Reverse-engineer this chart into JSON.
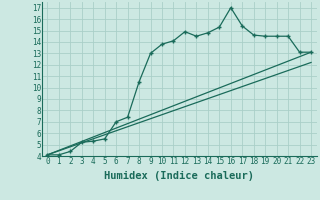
{
  "background_color": "#cce8e2",
  "grid_color": "#aacfc8",
  "line_color": "#1a6b5a",
  "xlabel": "Humidex (Indice chaleur)",
  "xlabel_fontsize": 7.5,
  "tick_fontsize": 5.5,
  "xlim": [
    -0.5,
    23.5
  ],
  "ylim": [
    4,
    17.5
  ],
  "x_ticks": [
    0,
    1,
    2,
    3,
    4,
    5,
    6,
    7,
    8,
    9,
    10,
    11,
    12,
    13,
    14,
    15,
    16,
    17,
    18,
    19,
    20,
    21,
    22,
    23
  ],
  "y_ticks": [
    4,
    5,
    6,
    7,
    8,
    9,
    10,
    11,
    12,
    13,
    14,
    15,
    16,
    17
  ],
  "curve1_x": [
    0,
    1,
    2,
    3,
    4,
    5,
    6,
    7,
    8,
    9,
    10,
    11,
    12,
    13,
    14,
    15,
    16,
    17,
    18,
    19,
    20,
    21,
    22,
    23
  ],
  "curve1_y": [
    4.1,
    4.1,
    4.4,
    5.2,
    5.3,
    5.5,
    7.0,
    7.4,
    10.5,
    13.0,
    13.8,
    14.1,
    14.9,
    14.5,
    14.8,
    15.3,
    17.0,
    15.4,
    14.6,
    14.5,
    14.5,
    14.5,
    13.1,
    13.1
  ],
  "line1_x": [
    0,
    23
  ],
  "line1_y": [
    4.1,
    13.1
  ],
  "line2_x": [
    0,
    23
  ],
  "line2_y": [
    4.1,
    12.2
  ]
}
